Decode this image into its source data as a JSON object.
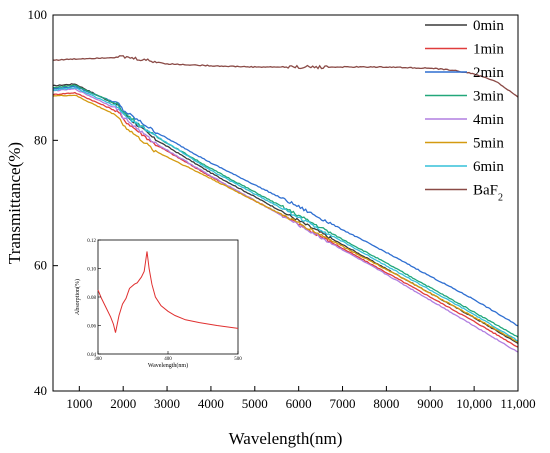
{
  "chart_data": {
    "type": "line",
    "xlabel": "Wavelength(nm)",
    "ylabel": "Transmittance(%)",
    "xlim": [
      400,
      11000
    ],
    "ylim": [
      40,
      100
    ],
    "xticks": [
      1000,
      2000,
      3000,
      4000,
      5000,
      6000,
      7000,
      8000,
      9000,
      10000,
      11000
    ],
    "xtick_labels": [
      "1000",
      "2000",
      "3000",
      "4000",
      "5000",
      "6000",
      "7000",
      "8000",
      "9000",
      "10,000",
      "11,000"
    ],
    "yticks": [
      40,
      60,
      80,
      100
    ],
    "ytick_labels": [
      "40",
      "60",
      "80",
      "100"
    ],
    "legend_position": "top-right",
    "series": [
      {
        "name": "0min",
        "color": "#3a3a3a",
        "x": [
          400,
          900,
          1900,
          2000,
          2700,
          4000,
          6000,
          8000,
          9000,
          10000,
          11000
        ],
        "y": [
          88.7,
          89.0,
          85.5,
          84.3,
          80.3,
          74.8,
          67.2,
          59.5,
          55.6,
          51.7,
          47.6
        ]
      },
      {
        "name": "1min",
        "color": "#e03c3c",
        "x": [
          400,
          900,
          1900,
          2000,
          2700,
          4000,
          6000,
          8000,
          9000,
          10000,
          11000
        ],
        "y": [
          87.3,
          87.6,
          84.5,
          83.3,
          79.5,
          74.2,
          66.6,
          58.9,
          55.0,
          51.1,
          47.0
        ]
      },
      {
        "name": "2min",
        "color": "#2f6fd1",
        "x": [
          400,
          900,
          1900,
          2000,
          2700,
          4000,
          6000,
          8000,
          9000,
          10000,
          11000
        ],
        "y": [
          88.2,
          88.6,
          85.8,
          84.8,
          81.5,
          76.4,
          69.4,
          62.1,
          58.3,
          54.6,
          50.4
        ]
      },
      {
        "name": "3min",
        "color": "#22a77a",
        "x": [
          400,
          900,
          1900,
          2000,
          2700,
          4000,
          6000,
          8000,
          9000,
          10000,
          11000
        ],
        "y": [
          88.4,
          88.8,
          85.6,
          84.5,
          80.8,
          75.5,
          68.0,
          60.4,
          56.5,
          52.6,
          48.6
        ]
      },
      {
        "name": "4min",
        "color": "#b07ee0",
        "x": [
          400,
          900,
          1900,
          2000,
          2700,
          4000,
          6000,
          8000,
          9000,
          10000,
          11000
        ],
        "y": [
          87.9,
          88.2,
          84.9,
          83.7,
          79.7,
          74.3,
          66.5,
          58.6,
          54.5,
          50.4,
          46.2
        ]
      },
      {
        "name": "5min",
        "color": "#d49a10",
        "x": [
          400,
          900,
          1900,
          2000,
          2700,
          4000,
          6000,
          8000,
          9000,
          10000,
          11000
        ],
        "y": [
          87.1,
          87.2,
          83.8,
          82.4,
          78.4,
          73.9,
          66.8,
          59.4,
          55.6,
          51.8,
          47.8
        ]
      },
      {
        "name": "6min",
        "color": "#35c0d8",
        "x": [
          400,
          900,
          1900,
          2000,
          2700,
          4000,
          6000,
          8000,
          9000,
          10000,
          11000
        ],
        "y": [
          88.0,
          88.4,
          85.2,
          84.1,
          80.9,
          75.2,
          67.7,
          60.0,
          56.1,
          52.2,
          48.0
        ]
      },
      {
        "name": "BaF",
        "name_subscript": "2",
        "color": "#8a4a46",
        "x": [
          400,
          1000,
          2000,
          2600,
          3000,
          4000,
          5000,
          6000,
          7000,
          8000,
          9000,
          9500,
          10000,
          10500,
          11000
        ],
        "y": [
          92.8,
          93.0,
          93.3,
          92.7,
          92.2,
          91.9,
          91.7,
          91.7,
          91.7,
          91.7,
          91.5,
          91.2,
          90.6,
          89.4,
          86.9
        ]
      }
    ],
    "inset": {
      "type": "line",
      "xlabel": "Wavelength(nm)",
      "ylabel": "Absorption(%)",
      "xlim": [
        300,
        500
      ],
      "ylim": [
        0.04,
        0.12
      ],
      "xticks": [
        300,
        400,
        500
      ],
      "xtick_labels": [
        "300",
        "400",
        "500"
      ],
      "yticks": [
        0.04,
        0.06,
        0.08,
        0.1,
        0.12
      ],
      "ytick_labels": [
        "0.04",
        "0.06",
        "0.08",
        "0.10",
        "0.12"
      ],
      "series": [
        {
          "color": "#e03030",
          "x": [
            300,
            305,
            312,
            318,
            322,
            325,
            330,
            335,
            340,
            345,
            352,
            356,
            362,
            366,
            368,
            370,
            373,
            377,
            382,
            390,
            400,
            410,
            425,
            445,
            470,
            500
          ],
          "y": [
            0.085,
            0.079,
            0.072,
            0.066,
            0.061,
            0.055,
            0.067,
            0.075,
            0.079,
            0.086,
            0.089,
            0.09,
            0.094,
            0.098,
            0.105,
            0.112,
            0.1,
            0.089,
            0.08,
            0.074,
            0.07,
            0.067,
            0.064,
            0.062,
            0.06,
            0.058
          ]
        }
      ]
    }
  }
}
